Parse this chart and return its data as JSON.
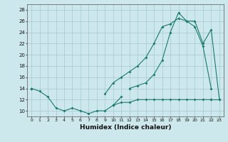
{
  "xlabel": "Humidex (Indice chaleur)",
  "x": [
    0,
    1,
    2,
    3,
    4,
    5,
    6,
    7,
    8,
    9,
    10,
    11,
    12,
    13,
    14,
    15,
    16,
    17,
    18,
    19,
    20,
    21,
    22,
    23
  ],
  "line1": [
    14,
    13.5,
    12.5,
    10.5,
    10,
    10.5,
    10,
    9.5,
    10,
    10,
    11,
    12.5,
    null,
    null,
    null,
    null,
    null,
    null,
    null,
    null,
    null,
    null,
    12,
    12
  ],
  "line2": [
    14,
    null,
    null,
    null,
    null,
    null,
    null,
    null,
    null,
    13,
    15,
    16,
    17,
    18,
    19.5,
    22,
    25,
    25.5,
    26.5,
    26,
    25,
    21.5,
    14,
    null
  ],
  "line3": [
    14,
    null,
    null,
    null,
    null,
    null,
    null,
    null,
    null,
    null,
    null,
    null,
    14,
    14.5,
    15,
    16.5,
    19,
    24,
    27.5,
    26,
    26,
    22,
    24.5,
    12
  ],
  "line4": [
    null,
    null,
    null,
    null,
    null,
    null,
    null,
    null,
    null,
    null,
    11,
    11.5,
    11.5,
    12,
    12,
    12,
    12,
    12,
    12,
    12,
    12,
    12,
    12,
    null
  ],
  "bg_color": "#cde8ec",
  "grid_color": "#aacdd4",
  "line_color": "#1a7a6e",
  "ylim": [
    9,
    29
  ],
  "xlim": [
    -0.5,
    23.5
  ],
  "yticks": [
    10,
    12,
    14,
    16,
    18,
    20,
    22,
    24,
    26,
    28
  ],
  "xticks": [
    0,
    1,
    2,
    3,
    4,
    5,
    6,
    7,
    8,
    9,
    10,
    11,
    12,
    13,
    14,
    15,
    16,
    17,
    18,
    19,
    20,
    21,
    22,
    23
  ]
}
